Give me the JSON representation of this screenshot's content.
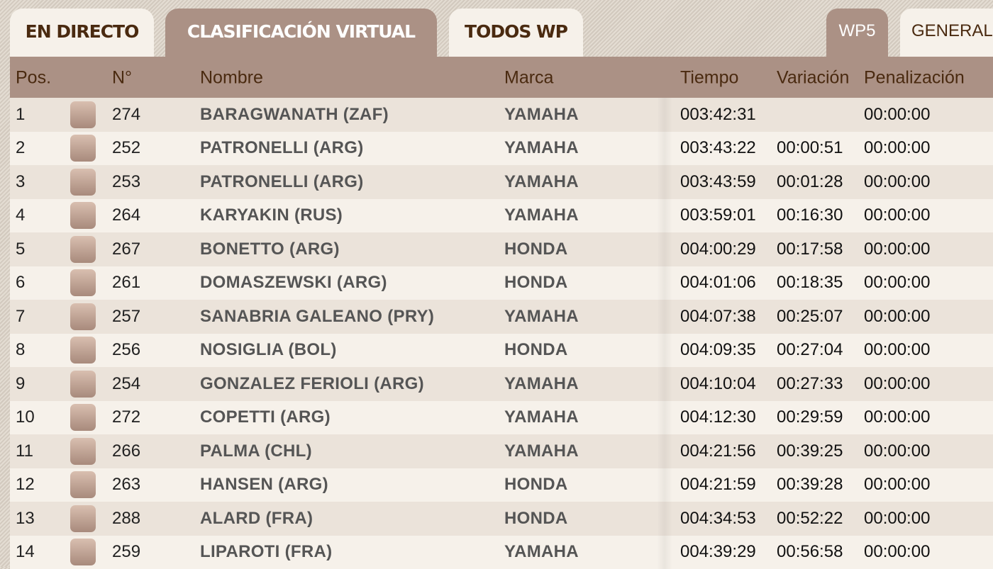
{
  "tabs": [
    {
      "label": "EN DIRECTO",
      "active": false
    },
    {
      "label": "CLASIFICACIÓN VIRTUAL",
      "active": true
    },
    {
      "label": "TODOS WP",
      "active": false
    }
  ],
  "sub_tabs": [
    {
      "label": "WP5",
      "active": true
    },
    {
      "label": "GENERAL",
      "active": false
    }
  ],
  "table": {
    "headers": {
      "pos": "Pos.",
      "num": "N°",
      "name": "Nombre",
      "brand": "Marca",
      "time": "Tiempo",
      "variation": "Variación",
      "penalty": "Penalización"
    },
    "rows": [
      {
        "pos": "1",
        "num": "274",
        "name": "BARAGWANATH (ZAF)",
        "brand": "YAMAHA",
        "time": "003:42:31",
        "variation": "",
        "penalty": "00:00:00"
      },
      {
        "pos": "2",
        "num": "252",
        "name": "PATRONELLI (ARG)",
        "brand": "YAMAHA",
        "time": "003:43:22",
        "variation": "00:00:51",
        "penalty": "00:00:00"
      },
      {
        "pos": "3",
        "num": "253",
        "name": "PATRONELLI (ARG)",
        "brand": "YAMAHA",
        "time": "003:43:59",
        "variation": "00:01:28",
        "penalty": "00:00:00"
      },
      {
        "pos": "4",
        "num": "264",
        "name": "KARYAKIN (RUS)",
        "brand": "YAMAHA",
        "time": "003:59:01",
        "variation": "00:16:30",
        "penalty": "00:00:00"
      },
      {
        "pos": "5",
        "num": "267",
        "name": "BONETTO (ARG)",
        "brand": "HONDA",
        "time": "004:00:29",
        "variation": "00:17:58",
        "penalty": "00:00:00"
      },
      {
        "pos": "6",
        "num": "261",
        "name": "DOMASZEWSKI (ARG)",
        "brand": "HONDA",
        "time": "004:01:06",
        "variation": "00:18:35",
        "penalty": "00:00:00"
      },
      {
        "pos": "7",
        "num": "257",
        "name": "SANABRIA GALEANO (PRY)",
        "brand": "YAMAHA",
        "time": "004:07:38",
        "variation": "00:25:07",
        "penalty": "00:00:00"
      },
      {
        "pos": "8",
        "num": "256",
        "name": "NOSIGLIA (BOL)",
        "brand": "HONDA",
        "time": "004:09:35",
        "variation": "00:27:04",
        "penalty": "00:00:00"
      },
      {
        "pos": "9",
        "num": "254",
        "name": "GONZALEZ FERIOLI (ARG)",
        "brand": "YAMAHA",
        "time": "004:10:04",
        "variation": "00:27:33",
        "penalty": "00:00:00"
      },
      {
        "pos": "10",
        "num": "272",
        "name": "COPETTI (ARG)",
        "brand": "YAMAHA",
        "time": "004:12:30",
        "variation": "00:29:59",
        "penalty": "00:00:00"
      },
      {
        "pos": "11",
        "num": "266",
        "name": "PALMA (CHL)",
        "brand": "YAMAHA",
        "time": "004:21:56",
        "variation": "00:39:25",
        "penalty": "00:00:00"
      },
      {
        "pos": "12",
        "num": "263",
        "name": "HANSEN (ARG)",
        "brand": "HONDA",
        "time": "004:21:59",
        "variation": "00:39:28",
        "penalty": "00:00:00"
      },
      {
        "pos": "13",
        "num": "288",
        "name": "ALARD (FRA)",
        "brand": "HONDA",
        "time": "004:34:53",
        "variation": "00:52:22",
        "penalty": "00:00:00"
      },
      {
        "pos": "14",
        "num": "259",
        "name": "LIPAROTI (FRA)",
        "brand": "YAMAHA",
        "time": "004:39:29",
        "variation": "00:56:58",
        "penalty": "00:00:00"
      }
    ]
  },
  "colors": {
    "header_bg": "#ab9185",
    "header_text": "#4a2a10",
    "row_odd": "#ebe3da",
    "row_even": "#f6f1ea"
  }
}
